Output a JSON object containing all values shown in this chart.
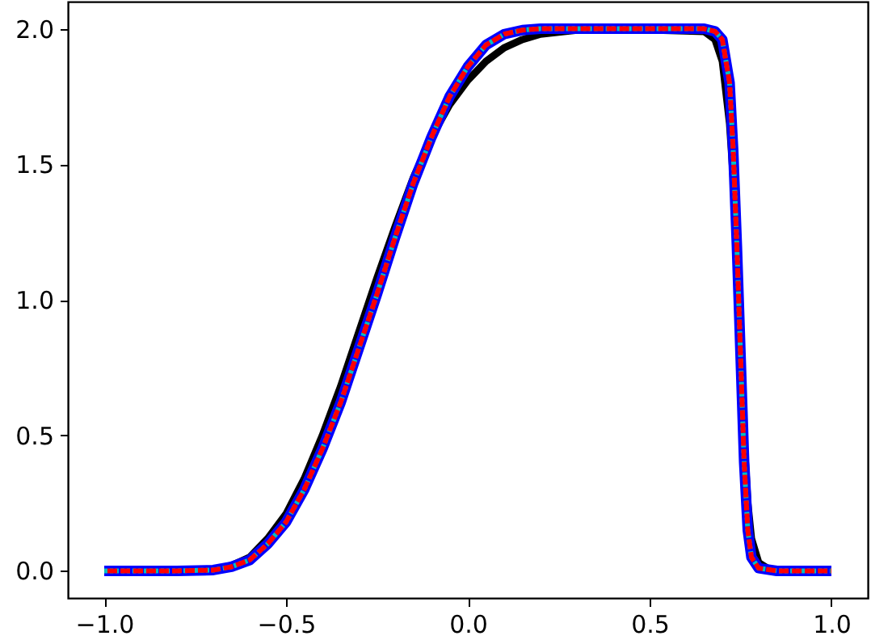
{
  "chart_data": {
    "type": "line",
    "xlim": [
      -1.1,
      1.1
    ],
    "ylim": [
      -0.1,
      2.1
    ],
    "xticks": [
      {
        "value": -1.0,
        "label": "−1.0"
      },
      {
        "value": -0.5,
        "label": "−0.5"
      },
      {
        "value": 0,
        "label": "0.0"
      },
      {
        "value": 0.5,
        "label": "0.5"
      },
      {
        "value": 1.0,
        "label": "1.0"
      }
    ],
    "yticks": [
      {
        "value": 0,
        "label": "0.0"
      },
      {
        "value": 0.5,
        "label": "0.5"
      },
      {
        "value": 1.0,
        "label": "1.0"
      },
      {
        "value": 1.5,
        "label": "1.5"
      },
      {
        "value": 2.0,
        "label": "2.0"
      }
    ],
    "grid": false,
    "series": [
      {
        "color": "#000000",
        "line_style": "solid",
        "x": [
          -0.7,
          -0.65,
          -0.6,
          -0.55,
          -0.5,
          -0.45,
          -0.4,
          -0.35,
          -0.3,
          -0.25,
          -0.2,
          -0.15,
          -0.1,
          -0.05,
          0,
          0.05,
          0.1,
          0.15,
          0.2,
          0.3,
          0.4,
          0.65,
          0.68,
          0.7,
          0.72,
          0.73,
          0.74,
          0.75,
          0.76,
          0.77,
          0.78,
          0.8,
          0.83,
          0.85,
          1
        ],
        "values": [
          0.005,
          0.02,
          0.05,
          0.12,
          0.21,
          0.34,
          0.5,
          0.68,
          0.88,
          1.08,
          1.27,
          1.45,
          1.6,
          1.72,
          1.81,
          1.88,
          1.93,
          1.96,
          1.98,
          1.995,
          2.0,
          1.99,
          1.96,
          1.88,
          1.65,
          1.45,
          1.15,
          0.8,
          0.48,
          0.25,
          0.12,
          0.03,
          0.005,
          0,
          0
        ]
      },
      {
        "color": "#0000ff",
        "line_style": "solid",
        "x": [
          -1,
          -0.8,
          -0.7,
          -0.65,
          -0.6,
          -0.55,
          -0.5,
          -0.45,
          -0.4,
          -0.35,
          -0.3,
          -0.25,
          -0.2,
          -0.15,
          -0.1,
          -0.05,
          0,
          0.05,
          0.1,
          0.15,
          0.2,
          0.5,
          0.65,
          0.68,
          0.7,
          0.72,
          0.73,
          0.74,
          0.75,
          0.76,
          0.77,
          0.78,
          0.8,
          0.85,
          1
        ],
        "values": [
          0,
          0,
          0.003,
          0.015,
          0.04,
          0.1,
          0.18,
          0.3,
          0.45,
          0.62,
          0.82,
          1.02,
          1.23,
          1.43,
          1.6,
          1.75,
          1.86,
          1.94,
          1.98,
          1.995,
          2.0,
          2.0,
          2.0,
          1.99,
          1.96,
          1.8,
          1.55,
          1.2,
          0.8,
          0.4,
          0.15,
          0.05,
          0.01,
          0,
          0
        ]
      },
      {
        "color": "#00bfbf",
        "line_style": "dotted",
        "x": [
          -1,
          -0.8,
          -0.7,
          -0.65,
          -0.6,
          -0.55,
          -0.5,
          -0.45,
          -0.4,
          -0.35,
          -0.3,
          -0.25,
          -0.2,
          -0.15,
          -0.1,
          -0.05,
          0,
          0.05,
          0.1,
          0.15,
          0.2,
          0.5,
          0.65,
          0.68,
          0.7,
          0.72,
          0.73,
          0.74,
          0.75,
          0.76,
          0.77,
          0.78,
          0.8,
          0.85,
          1
        ],
        "values": [
          0,
          0,
          0.003,
          0.015,
          0.04,
          0.1,
          0.18,
          0.3,
          0.45,
          0.62,
          0.82,
          1.02,
          1.23,
          1.43,
          1.6,
          1.75,
          1.86,
          1.94,
          1.98,
          1.995,
          2.0,
          2.0,
          2.0,
          1.99,
          1.96,
          1.8,
          1.55,
          1.2,
          0.8,
          0.4,
          0.15,
          0.05,
          0.01,
          0,
          0
        ]
      },
      {
        "color": "#ff0000",
        "line_style": "dashed",
        "x": [
          -1,
          -0.8,
          -0.7,
          -0.65,
          -0.6,
          -0.55,
          -0.5,
          -0.45,
          -0.4,
          -0.35,
          -0.3,
          -0.25,
          -0.2,
          -0.15,
          -0.1,
          -0.05,
          0,
          0.05,
          0.1,
          0.15,
          0.2,
          0.5,
          0.65,
          0.68,
          0.7,
          0.72,
          0.73,
          0.74,
          0.75,
          0.76,
          0.77,
          0.78,
          0.8,
          0.85,
          1
        ],
        "values": [
          0,
          0,
          0.003,
          0.015,
          0.04,
          0.1,
          0.18,
          0.3,
          0.45,
          0.62,
          0.82,
          1.02,
          1.23,
          1.43,
          1.6,
          1.75,
          1.86,
          1.94,
          1.98,
          1.995,
          2.0,
          2.0,
          2.0,
          1.99,
          1.96,
          1.8,
          1.55,
          1.2,
          0.8,
          0.4,
          0.15,
          0.05,
          0.01,
          0,
          0
        ]
      }
    ]
  }
}
